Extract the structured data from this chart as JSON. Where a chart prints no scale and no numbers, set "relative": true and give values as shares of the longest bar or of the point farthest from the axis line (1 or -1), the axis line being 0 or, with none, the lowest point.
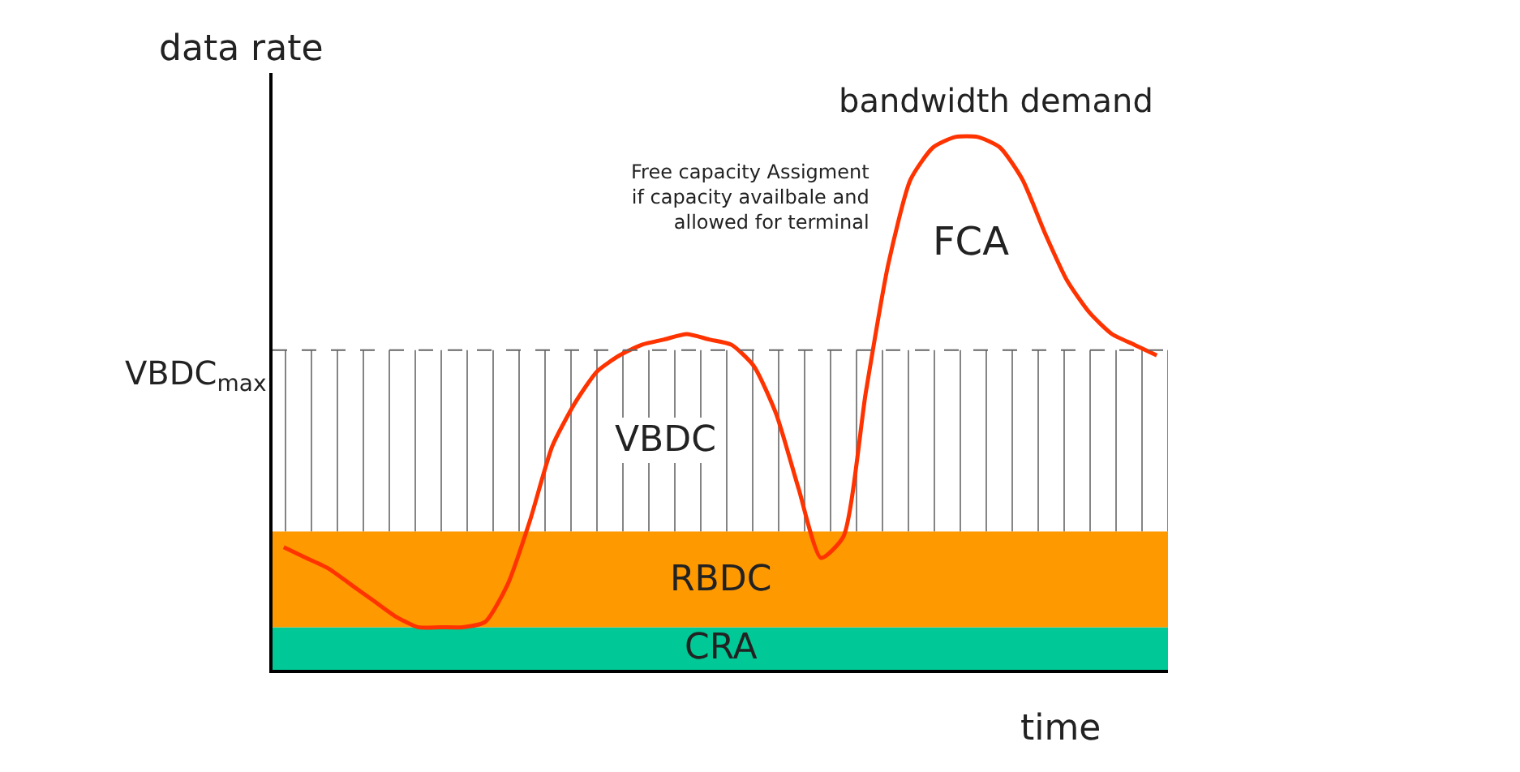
{
  "chart_data": {
    "type": "line",
    "relative": true,
    "ylabel": "data rate",
    "xlabel": "time",
    "categories": [
      null,
      null,
      null,
      null,
      null,
      null,
      null,
      null,
      null,
      null,
      null,
      null,
      null,
      null,
      null,
      null,
      null,
      null,
      null,
      null,
      null,
      null,
      null,
      null,
      null,
      null,
      null,
      null,
      null,
      null,
      null,
      null,
      null,
      null,
      null,
      null,
      null,
      null,
      null,
      null
    ],
    "series": [
      {
        "name": "bandwidth demand",
        "color": "#ff3300",
        "values": [
          0.23,
          0.21,
          0.19,
          0.16,
          0.13,
          0.1,
          0.08,
          0.08,
          0.08,
          0.09,
          0.16,
          0.28,
          0.42,
          0.5,
          0.56,
          0.59,
          0.61,
          0.62,
          0.63,
          0.62,
          0.61,
          0.57,
          0.48,
          0.34,
          0.21,
          0.25,
          0.52,
          0.76,
          0.92,
          0.98,
          1,
          1,
          0.98,
          0.92,
          0.82,
          0.73,
          0.67,
          0.63,
          0.61,
          0.59
        ]
      }
    ],
    "bands": [
      {
        "axis": "y",
        "from": 0,
        "to": 0.08,
        "label": "CRA",
        "color": "#00c896"
      },
      {
        "axis": "y",
        "from": 0.08,
        "to": 0.26,
        "label": "RBDC",
        "color": "#ff9900"
      },
      {
        "axis": "y",
        "from": 0.26,
        "to": 0.6,
        "label": "VBDC"
      }
    ],
    "ref_lines": [
      {
        "axis": "y",
        "value": 0.6,
        "label": "VBDC$_{max}$",
        "line_style": "dashed"
      }
    ],
    "annotations": [
      "Free capacity Assigment\nif capacity availbale and\nallowed for terminal",
      "FCA"
    ],
    "grid": false,
    "legend": false,
    "marker": "none",
    "line_style": "solid"
  }
}
